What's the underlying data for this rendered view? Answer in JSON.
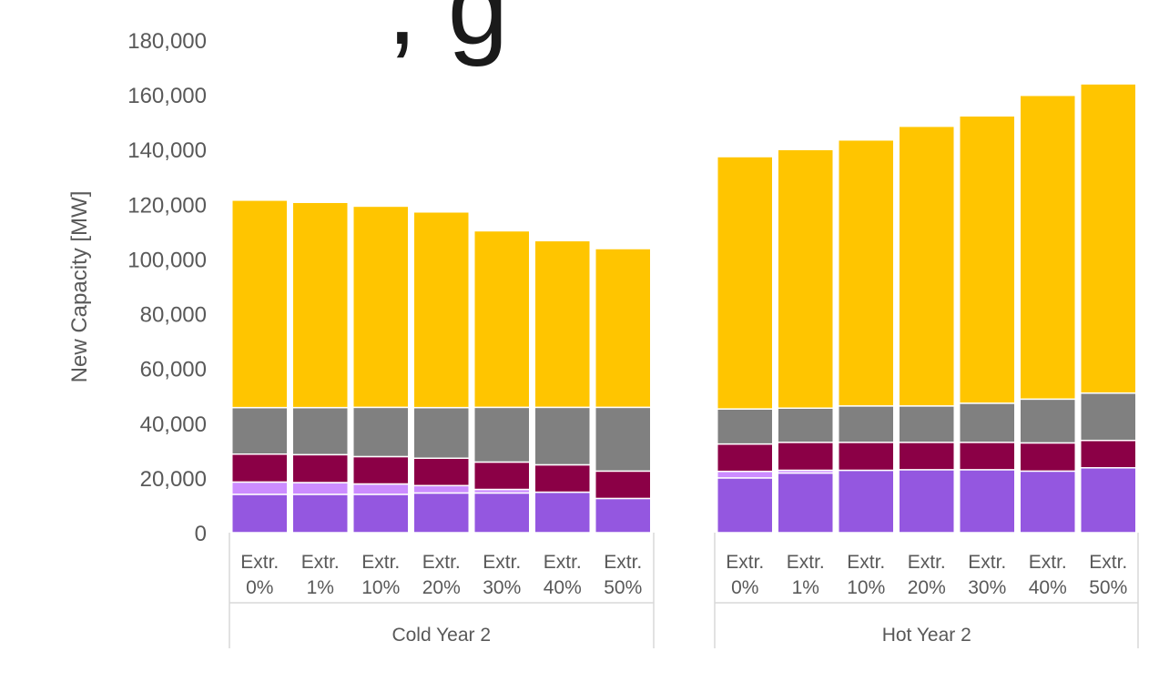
{
  "chart_data": {
    "type": "bar",
    "stacked": true,
    "title_fragment": ", g",
    "ylabel": "New Capacity [MW]",
    "ylim": [
      0,
      180000
    ],
    "yticks": [
      "0",
      "20,000",
      "40,000",
      "60,000",
      "80,000",
      "100,000",
      "120,000",
      "140,000",
      "160,000",
      "180,000"
    ],
    "grid": false,
    "legend": "none",
    "groups": [
      {
        "name": "Cold Year 2",
        "categories": [
          [
            "Extr.",
            "0%"
          ],
          [
            "Extr.",
            "1%"
          ],
          [
            "Extr.",
            "10%"
          ],
          [
            "Extr.",
            "20%"
          ],
          [
            "Extr.",
            "30%"
          ],
          [
            "Extr.",
            "40%"
          ],
          [
            "Extr.",
            "50%"
          ]
        ],
        "series": [
          {
            "color": "#9457e0",
            "values": [
              14000,
              14000,
              14000,
              14500,
              14500,
              14800,
              12500
            ]
          },
          {
            "color": "#cc8cff",
            "values": [
              4500,
              4300,
              3800,
              2700,
              1300,
              0,
              0
            ]
          },
          {
            "color": "#8b0046",
            "values": [
              10200,
              10200,
              10000,
              10000,
              10000,
              10000,
              10000
            ]
          },
          {
            "color": "#808080",
            "values": [
              17000,
              17200,
              18000,
              18500,
              20000,
              21000,
              23300
            ]
          },
          {
            "color": "#ffc500",
            "values": [
              75800,
              75000,
              73500,
              71500,
              64500,
              60900,
              58000
            ]
          }
        ]
      },
      {
        "name": "Hot Year 2",
        "categories": [
          [
            "Extr.",
            "0%"
          ],
          [
            "Extr.",
            "1%"
          ],
          [
            "Extr.",
            "10%"
          ],
          [
            "Extr.",
            "20%"
          ],
          [
            "Extr.",
            "30%"
          ],
          [
            "Extr.",
            "40%"
          ],
          [
            "Extr.",
            "50%"
          ]
        ],
        "series": [
          {
            "color": "#9457e0",
            "values": [
              20000,
              21800,
              22800,
              23000,
              23000,
              22500,
              23700
            ]
          },
          {
            "color": "#cc8cff",
            "values": [
              2400,
              1000,
              0,
              0,
              0,
              0,
              0
            ]
          },
          {
            "color": "#8b0046",
            "values": [
              10000,
              10200,
              10200,
              10000,
              10000,
              10300,
              10000
            ]
          },
          {
            "color": "#808080",
            "values": [
              12800,
              12500,
              13300,
              13300,
              14300,
              16000,
              17300
            ]
          },
          {
            "color": "#ffc500",
            "values": [
              92200,
              94500,
              97200,
              102200,
              105000,
              111000,
              113000
            ]
          }
        ]
      }
    ]
  }
}
